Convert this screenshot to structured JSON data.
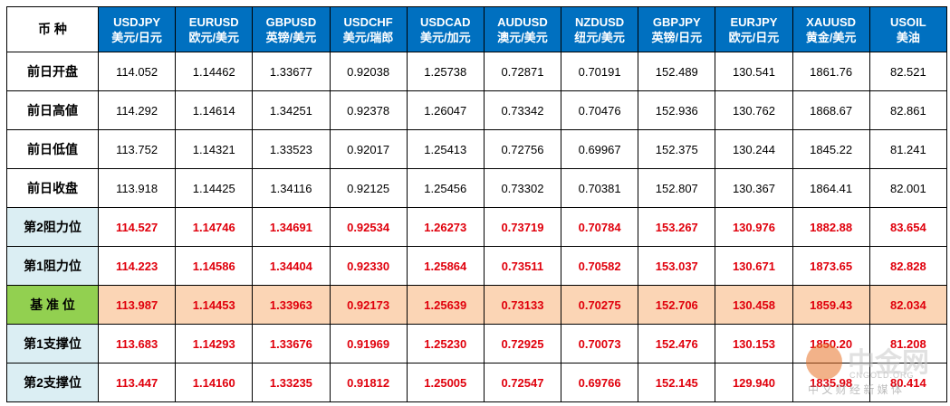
{
  "table": {
    "header": {
      "label": "币 种",
      "columns": [
        {
          "code": "USDJPY",
          "unit": "美元/日元"
        },
        {
          "code": "EURUSD",
          "unit": "欧元/美元"
        },
        {
          "code": "GBPUSD",
          "unit": "英镑/美元"
        },
        {
          "code": "USDCHF",
          "unit": "美元/瑞郎"
        },
        {
          "code": "USDCAD",
          "unit": "美元/加元"
        },
        {
          "code": "AUDUSD",
          "unit": "澳元/美元"
        },
        {
          "code": "NZDUSD",
          "unit": "纽元/美元"
        },
        {
          "code": "GBPJPY",
          "unit": "英镑/日元"
        },
        {
          "code": "EURJPY",
          "unit": "欧元/日元"
        },
        {
          "code": "XAUUSD",
          "unit": "黄金/美元"
        },
        {
          "code": "USOIL",
          "unit": "美油"
        }
      ]
    },
    "rows": [
      {
        "label": "前日开盘",
        "values": [
          "114.052",
          "1.14462",
          "1.33677",
          "0.92038",
          "1.25738",
          "0.72871",
          "0.70191",
          "152.489",
          "130.541",
          "1861.76",
          "82.521"
        ]
      },
      {
        "label": "前日高値",
        "values": [
          "114.292",
          "1.14614",
          "1.34251",
          "0.92378",
          "1.26047",
          "0.73342",
          "0.70476",
          "152.936",
          "130.762",
          "1868.67",
          "82.861"
        ]
      },
      {
        "label": "前日低值",
        "values": [
          "113.752",
          "1.14321",
          "1.33523",
          "0.92017",
          "1.25413",
          "0.72756",
          "0.69967",
          "152.375",
          "130.244",
          "1845.22",
          "81.241"
        ]
      },
      {
        "label": "前日收盘",
        "values": [
          "113.918",
          "1.14425",
          "1.34116",
          "0.92125",
          "1.25456",
          "0.73302",
          "0.70381",
          "152.807",
          "130.367",
          "1864.41",
          "82.001"
        ]
      },
      {
        "label": "第2阻力位",
        "values": [
          "114.527",
          "1.14746",
          "1.34691",
          "0.92534",
          "1.26273",
          "0.73719",
          "0.70784",
          "153.267",
          "130.976",
          "1882.88",
          "83.654"
        ]
      },
      {
        "label": "第1阻力位",
        "values": [
          "114.223",
          "1.14586",
          "1.34404",
          "0.92330",
          "1.25864",
          "0.73511",
          "0.70582",
          "153.037",
          "130.671",
          "1873.65",
          "82.828"
        ]
      },
      {
        "label": "基 准 位",
        "values": [
          "113.987",
          "1.14453",
          "1.33963",
          "0.92173",
          "1.25639",
          "0.73133",
          "0.70275",
          "152.706",
          "130.458",
          "1859.43",
          "82.034"
        ]
      },
      {
        "label": "第1支撑位",
        "values": [
          "113.683",
          "1.14293",
          "1.33676",
          "0.91969",
          "1.25230",
          "0.72925",
          "0.70073",
          "152.476",
          "130.153",
          "1850.20",
          "81.208"
        ]
      },
      {
        "label": "第2支撑位",
        "values": [
          "113.447",
          "1.14160",
          "1.33235",
          "0.91812",
          "1.25005",
          "0.72547",
          "0.69766",
          "152.145",
          "129.940",
          "1835.98",
          "80.414"
        ]
      }
    ]
  },
  "watermark": {
    "brand": "中金网",
    "site": "CNGOLD.ORG",
    "slogan": "中 文 财 经 新 媒 体"
  }
}
